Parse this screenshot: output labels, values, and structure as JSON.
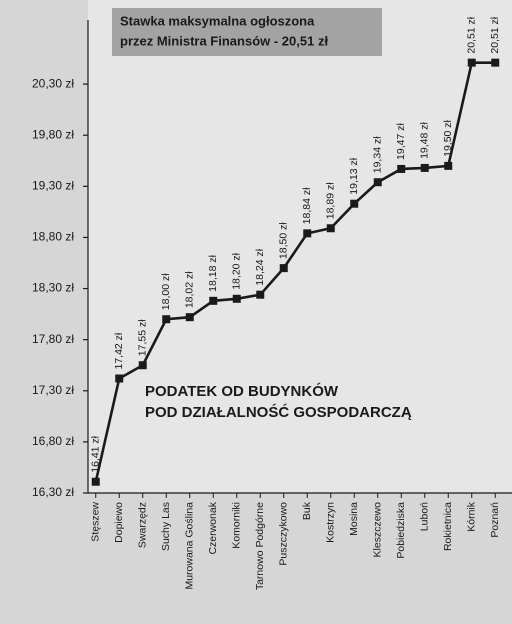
{
  "chart_data": {
    "type": "line",
    "annotations": [
      [
        "Stawka maksymalna ogłoszona",
        "przez Ministra Finansów - 20,51 zł"
      ],
      [
        "PODATEK OD BUDYNKÓW",
        "POD DZIAŁALNOŚĆ GOSPODARCZĄ"
      ]
    ],
    "categories": [
      "Stęszew",
      "Dopiewo",
      "Swarzędz",
      "Suchy Las",
      "Murowana Goślina",
      "Czerwonak",
      "Komorniki",
      "Tarnowo Podgórne",
      "Puszczykowo",
      "Buk",
      "Kostrzyn",
      "Mosina",
      "Kleszczewo",
      "Pobiedziska",
      "Luboń",
      "Rokietnica",
      "Kórnik",
      "Poznań"
    ],
    "values": [
      16.41,
      17.42,
      17.55,
      18.0,
      18.02,
      18.18,
      18.2,
      18.24,
      18.5,
      18.84,
      18.89,
      19.13,
      19.34,
      19.47,
      19.48,
      19.5,
      20.51,
      20.51
    ],
    "value_labels": [
      "16,41 zł",
      "17,42 zł",
      "17,55 zł",
      "18,00 zł",
      "18,02 zł",
      "18,18 zł",
      "18,20 zł",
      "18,24 zł",
      "18,50 zł",
      "18,84 zł",
      "18,89 zł",
      "19,13 zł",
      "19,34 zł",
      "19,47 zł",
      "19,48 zł",
      "19,50 zł",
      "20,51 zł",
      "20,51 zł"
    ],
    "color": "#1a1a1a",
    "ylim": [
      16.3,
      20.8
    ],
    "yticks": [
      {
        "value": 16.3,
        "label": "16,30 zł"
      },
      {
        "value": 16.8,
        "label": "16,80 zł"
      },
      {
        "value": 17.3,
        "label": "17,30 zł"
      },
      {
        "value": 17.8,
        "label": "17,80 zł"
      },
      {
        "value": 18.3,
        "label": "18,30 zł"
      },
      {
        "value": 18.8,
        "label": "18,80 zł"
      },
      {
        "value": 19.3,
        "label": "19,30 zł"
      },
      {
        "value": 19.8,
        "label": "19,80 zł"
      },
      {
        "value": 20.3,
        "label": "20,30 zł"
      }
    ]
  }
}
